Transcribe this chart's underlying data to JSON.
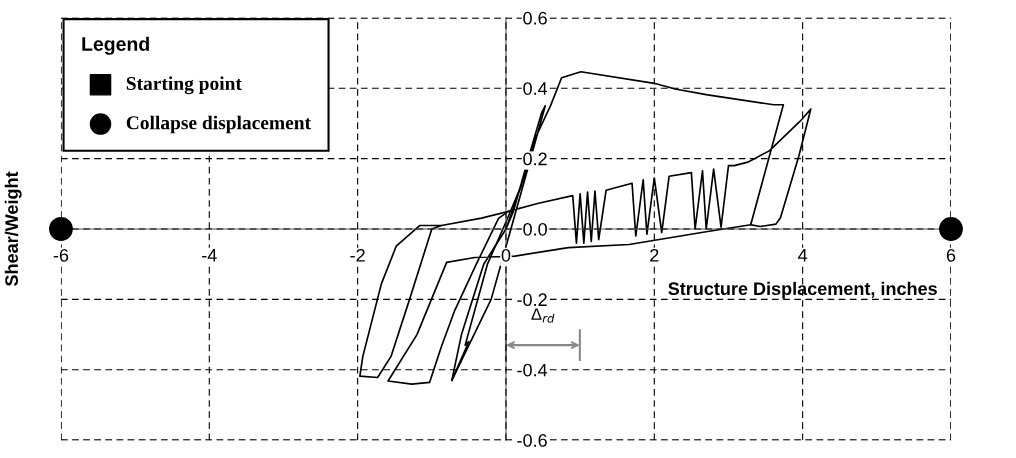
{
  "chart_data": {
    "type": "line",
    "xlabel": "Structure Displacement, inches",
    "ylabel": "Shear/Weight",
    "legend_title": "Legend",
    "xlim": [
      -6,
      6
    ],
    "ylim": [
      -0.6,
      0.6
    ],
    "xticks": [
      -6,
      -4,
      -2,
      0,
      2,
      4,
      6
    ],
    "yticks": [
      -0.6,
      -0.4,
      -0.2,
      {
        "value": 0,
        "label": "0.0"
      },
      0.2,
      0.4,
      0.6
    ],
    "grid": true,
    "legend": "top left",
    "line_style": "solid",
    "annotations": [
      "Δ$_{rd}$"
    ],
    "series": [
      {
        "color": "#000000",
        "marker": "none",
        "x": [
          0,
          0.1,
          0.3,
          0.48,
          0.53,
          0.2,
          -0.2,
          -0.73,
          -0.6,
          -0.3,
          0,
          0.2,
          0.4,
          0.6,
          0.75,
          1.01,
          2.0,
          2.28,
          2.72,
          3.61,
          3.74,
          3.3,
          2.72,
          1.66,
          0.84,
          0.12,
          -0.42,
          -0.8,
          -1.2,
          -1.59,
          -1.27,
          -1.03,
          -0.87,
          -0.69,
          -0.4,
          -0.1,
          0.03,
          0.44,
          0.9,
          0.95,
          1.0,
          1.05,
          1.1,
          1.15,
          1.2,
          1.25,
          1.35,
          1.7,
          1.75,
          1.85,
          1.9,
          2.0,
          2.1,
          2.2,
          2.5,
          2.55,
          2.65,
          2.7,
          2.8,
          2.9,
          3.0,
          3.08,
          3.26,
          3.55,
          3.97,
          4.11,
          3.95,
          3.7,
          3.64,
          3.43,
          3.3
        ],
        "values": [
          0,
          0.05,
          0.2,
          0.33,
          0.35,
          0.1,
          -0.2,
          -0.43,
          -0.3,
          -0.1,
          0.0,
          0.12,
          0.26,
          0.35,
          0.43,
          0.447,
          0.414,
          0.398,
          0.381,
          0.353,
          0.353,
          0.012,
          -0.007,
          -0.044,
          -0.053,
          -0.077,
          -0.081,
          -0.095,
          -0.3,
          -0.432,
          -0.441,
          -0.436,
          -0.334,
          -0.231,
          -0.1,
          0.03,
          0.05,
          0.073,
          0.095,
          -0.04,
          0.1,
          -0.04,
          0.105,
          -0.035,
          0.108,
          -0.03,
          0.11,
          0.13,
          -0.02,
          0.14,
          -0.015,
          0.145,
          -0.01,
          0.15,
          0.16,
          0.0,
          0.165,
          0.0,
          0.17,
          0.005,
          0.18,
          0.18,
          0.19,
          0.222,
          0.307,
          0.341,
          0.208,
          0.031,
          0.014,
          0.007,
          0.012
        ]
      },
      {
        "color": "#000000",
        "marker": "none",
        "x": [
          0.03,
          -0.33,
          -0.87,
          -1.16,
          -1.48,
          -1.68,
          -1.93,
          -1.97,
          -1.73,
          -1.55,
          -1.3,
          -1.0,
          -0.87
        ],
        "values": [
          0.05,
          0.031,
          0.01,
          0.01,
          -0.049,
          -0.156,
          -0.362,
          -0.418,
          -0.422,
          -0.362,
          -0.2,
          0.0,
          0.01
        ]
      },
      {
        "color": "#000000",
        "marker": "none",
        "x": [
          -0.73,
          -0.5,
          -0.55,
          -0.25,
          0,
          0.2
        ],
        "values": [
          -0.43,
          -0.32,
          -0.33,
          -0.1,
          0.02,
          0.12
        ]
      },
      {
        "type": "scatter",
        "name": "Starting point",
        "color": "#000000",
        "marker": "square"
      },
      {
        "type": "scatter",
        "name": "Collapse displacement",
        "color": "#000000",
        "marker": "circle",
        "x": [
          -6,
          6
        ],
        "values": [
          0,
          0
        ]
      }
    ]
  }
}
